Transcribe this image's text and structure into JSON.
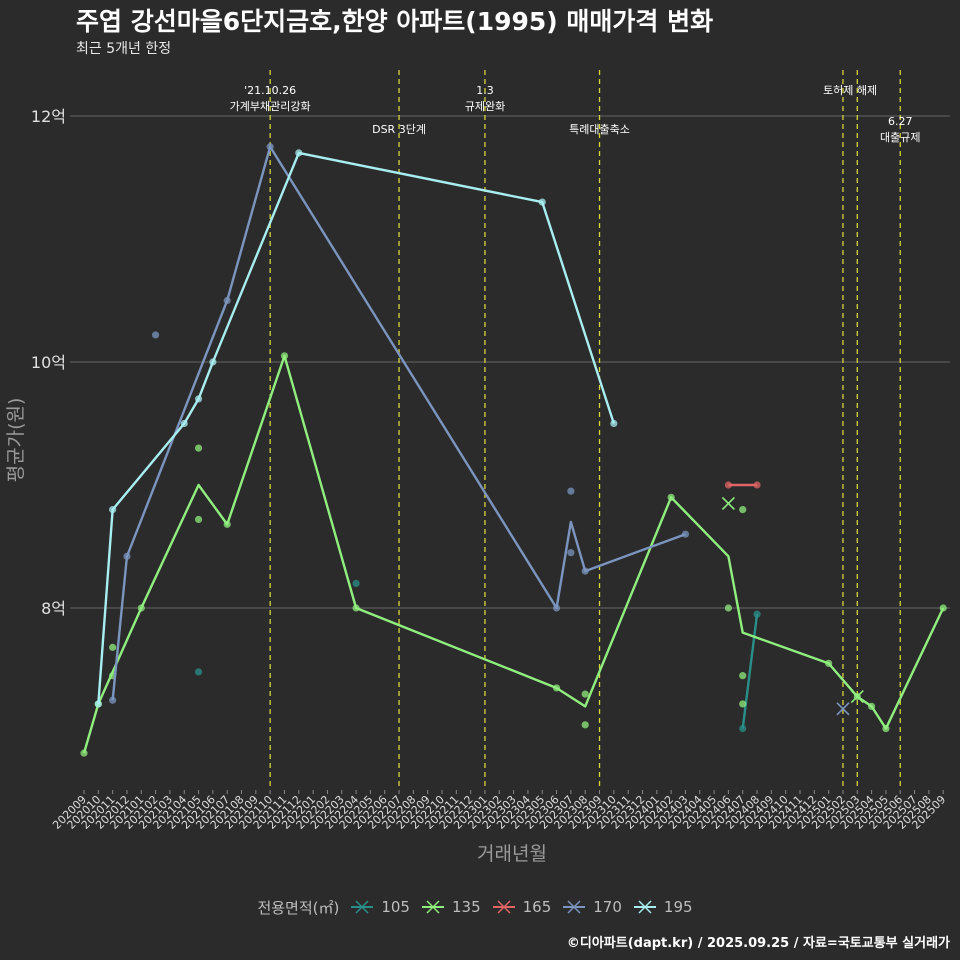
{
  "header": {
    "title": "주엽 강선마을6단지금호,한양 아파트(1995) 매매가격 변화",
    "subtitle": "최근 5개년 한정"
  },
  "caption": "©디아파트(dapt.kr) / 2025.09.25 / 자료=국토교통부 실거래가",
  "legend": {
    "title": "전용면적(㎡)",
    "items": [
      {
        "label": "105",
        "color": "#2a8f8a"
      },
      {
        "label": "135",
        "color": "#90ee7e"
      },
      {
        "label": "165",
        "color": "#e06666"
      },
      {
        "label": "170",
        "color": "#7b95bf"
      },
      {
        "label": "195",
        "color": "#a8eef0"
      }
    ]
  },
  "chart_data": {
    "type": "line",
    "xlabel": "거래년월",
    "ylabel": "평균가(원)",
    "ylim": [
      6.6,
      12.5
    ],
    "y_ticks": [
      {
        "value": 8,
        "label": "8억"
      },
      {
        "value": 10,
        "label": "10억"
      },
      {
        "value": 12,
        "label": "12억"
      }
    ],
    "grid": true,
    "legend_position": "bottom",
    "categories": [
      "202009",
      "202010",
      "202011",
      "202012",
      "202101",
      "202102",
      "202103",
      "202104",
      "202105",
      "202106",
      "202107",
      "202108",
      "202109",
      "202110",
      "202111",
      "202112",
      "202201",
      "202202",
      "202203",
      "202204",
      "202205",
      "202206",
      "202207",
      "202208",
      "202209",
      "202210",
      "202211",
      "202212",
      "202301",
      "202302",
      "202303",
      "202304",
      "202305",
      "202306",
      "202307",
      "202308",
      "202309",
      "202310",
      "202311",
      "202312",
      "202401",
      "202402",
      "202403",
      "202404",
      "202405",
      "202406",
      "202407",
      "202408",
      "202409",
      "202410",
      "202411",
      "202412",
      "202501",
      "202502",
      "202503",
      "202504",
      "202505",
      "202506",
      "202507",
      "202508",
      "202509"
    ],
    "vlines": [
      {
        "x": "202110",
        "label": "'21.10.26\n가계부채관리강화",
        "label_pos": "top"
      },
      {
        "x": "202207",
        "label": "DSR 3단계",
        "label_pos": "low"
      },
      {
        "x": "202301",
        "label": "1.3\n규제완화",
        "label_pos": "top"
      },
      {
        "x": "202309",
        "label": "특례대출축소",
        "label_pos": "low"
      },
      {
        "x": "202502",
        "label": "",
        "label_pos": "top"
      },
      {
        "x": "202503",
        "label": "토허제 해제",
        "label_pos": "top",
        "label_anchor_between": "202502"
      },
      {
        "x": "202506",
        "label": "6.27\n대출규제",
        "label_pos": "low"
      }
    ],
    "series": [
      {
        "name": "105",
        "color": "#2a8f8a",
        "line": [
          [
            "202407",
            7.02
          ],
          [
            "202408",
            7.95
          ]
        ],
        "points": [
          [
            "202105",
            7.48
          ],
          [
            "202204",
            8.2
          ],
          [
            "202407",
            7.02
          ],
          [
            "202408",
            7.95
          ]
        ],
        "crosses": []
      },
      {
        "name": "135",
        "color": "#90ee7e",
        "line": [
          [
            "202009",
            6.82
          ],
          [
            "202010",
            7.22
          ],
          [
            "202101",
            8.0
          ],
          [
            "202105",
            9.0
          ],
          [
            "202107",
            8.68
          ],
          [
            "202111",
            10.05
          ],
          [
            "202204",
            8.0
          ],
          [
            "202306",
            7.35
          ],
          [
            "202308",
            7.2
          ],
          [
            "202402",
            8.9
          ],
          [
            "202406",
            8.42
          ],
          [
            "202407",
            7.8
          ],
          [
            "202501",
            7.55
          ],
          [
            "202503",
            7.28
          ],
          [
            "202504",
            7.2
          ],
          [
            "202505",
            7.02
          ],
          [
            "202509",
            8.0
          ]
        ],
        "points": [
          [
            "202009",
            6.82
          ],
          [
            "202010",
            7.22
          ],
          [
            "202011",
            7.45
          ],
          [
            "202011",
            7.68
          ],
          [
            "202101",
            8.0
          ],
          [
            "202105",
            9.3
          ],
          [
            "202105",
            8.72
          ],
          [
            "202107",
            8.68
          ],
          [
            "202111",
            10.05
          ],
          [
            "202204",
            8.0
          ],
          [
            "202306",
            7.35
          ],
          [
            "202308",
            7.05
          ],
          [
            "202308",
            7.3
          ],
          [
            "202402",
            8.9
          ],
          [
            "202406",
            8.0
          ],
          [
            "202407",
            7.45
          ],
          [
            "202407",
            7.22
          ],
          [
            "202407",
            8.8
          ],
          [
            "202501",
            7.55
          ],
          [
            "202503",
            7.28
          ],
          [
            "202504",
            7.2
          ],
          [
            "202505",
            7.02
          ],
          [
            "202509",
            8.0
          ]
        ],
        "crosses": [
          [
            "202406",
            8.85
          ],
          [
            "202503",
            7.28
          ]
        ]
      },
      {
        "name": "165",
        "color": "#e06666",
        "line": [
          [
            "202406",
            9.0
          ],
          [
            "202408",
            9.0
          ]
        ],
        "points": [
          [
            "202406",
            9.0
          ],
          [
            "202408",
            9.0
          ]
        ],
        "crosses": []
      },
      {
        "name": "170",
        "color": "#7b95bf",
        "line": [
          [
            "202011",
            7.25
          ],
          [
            "202012",
            8.42
          ],
          [
            "202107",
            10.5
          ],
          [
            "202110",
            11.75
          ],
          [
            "202306",
            8.0
          ],
          [
            "202307",
            8.7
          ],
          [
            "202308",
            8.3
          ],
          [
            "202403",
            8.6
          ]
        ],
        "points": [
          [
            "202011",
            7.25
          ],
          [
            "202012",
            8.42
          ],
          [
            "202102",
            10.22
          ],
          [
            "202107",
            10.5
          ],
          [
            "202110",
            11.75
          ],
          [
            "202306",
            8.0
          ],
          [
            "202307",
            8.45
          ],
          [
            "202307",
            8.95
          ],
          [
            "202308",
            8.3
          ],
          [
            "202403",
            8.6
          ]
        ],
        "crosses": [
          [
            "202502",
            7.18
          ]
        ]
      },
      {
        "name": "195",
        "color": "#a8eef0",
        "line": [
          [
            "202010",
            7.22
          ],
          [
            "202011",
            8.8
          ],
          [
            "202104",
            9.5
          ],
          [
            "202105",
            9.7
          ],
          [
            "202106",
            10.0
          ],
          [
            "202112",
            11.7
          ],
          [
            "202305",
            11.3
          ],
          [
            "202310",
            9.5
          ]
        ],
        "points": [
          [
            "202010",
            7.22
          ],
          [
            "202011",
            8.8
          ],
          [
            "202104",
            9.5
          ],
          [
            "202105",
            9.7
          ],
          [
            "202106",
            10.0
          ],
          [
            "202112",
            11.7
          ],
          [
            "202305",
            11.3
          ],
          [
            "202310",
            9.5
          ]
        ],
        "crosses": []
      }
    ]
  }
}
